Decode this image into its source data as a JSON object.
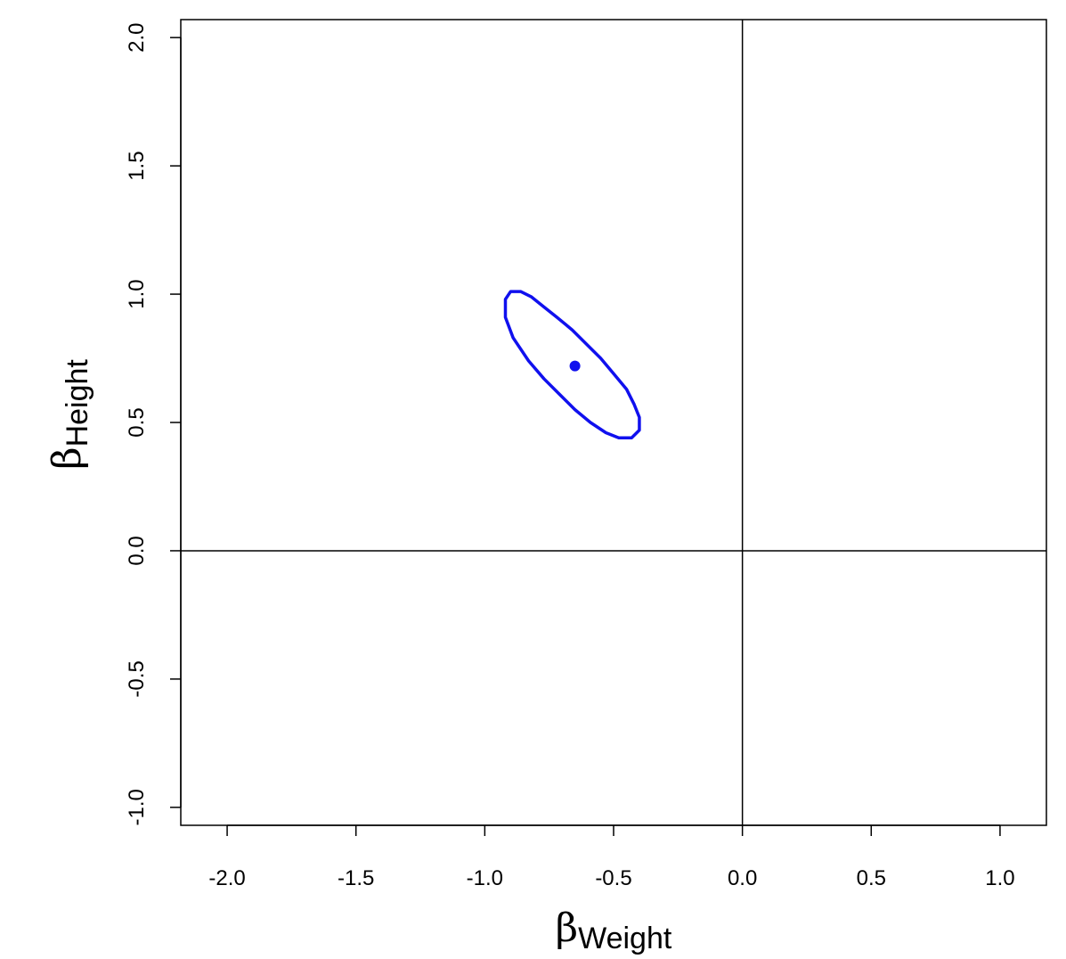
{
  "chart_data": {
    "type": "scatter",
    "title": "",
    "xlabel": {
      "symbol": "β",
      "subscript": "Weight"
    },
    "ylabel": {
      "symbol": "β",
      "subscript": "Height"
    },
    "xlim": [
      -2.18,
      1.18
    ],
    "ylim": [
      -1.07,
      2.07
    ],
    "x_ticks": [
      -2.0,
      -1.5,
      -1.0,
      -0.5,
      0.0,
      0.5,
      1.0
    ],
    "x_tick_labels": [
      "-2.0",
      "-1.5",
      "-1.0",
      "-0.5",
      "0.0",
      "0.5",
      "1.0"
    ],
    "y_ticks": [
      -1.0,
      -0.5,
      0.0,
      0.5,
      1.0,
      1.5,
      2.0
    ],
    "y_tick_labels": [
      "-1.0",
      "-0.5",
      "0.0",
      "0.5",
      "1.0",
      "1.5",
      "2.0"
    ],
    "reference_lines": {
      "x": 0.0,
      "y": 0.0
    },
    "grid": false,
    "color": "#1010ee",
    "point_estimate": {
      "x": -0.65,
      "y": 0.72
    },
    "confidence_ellipse": {
      "points": [
        [
          -0.9,
          1.01
        ],
        [
          -0.86,
          1.01
        ],
        [
          -0.82,
          0.99
        ],
        [
          -0.77,
          0.95
        ],
        [
          -0.72,
          0.91
        ],
        [
          -0.66,
          0.86
        ],
        [
          -0.61,
          0.81
        ],
        [
          -0.55,
          0.75
        ],
        [
          -0.5,
          0.69
        ],
        [
          -0.45,
          0.63
        ],
        [
          -0.42,
          0.57
        ],
        [
          -0.4,
          0.52
        ],
        [
          -0.4,
          0.47
        ],
        [
          -0.43,
          0.44
        ],
        [
          -0.48,
          0.44
        ],
        [
          -0.53,
          0.46
        ],
        [
          -0.59,
          0.5
        ],
        [
          -0.65,
          0.55
        ],
        [
          -0.71,
          0.61
        ],
        [
          -0.77,
          0.67
        ],
        [
          -0.83,
          0.74
        ],
        [
          -0.89,
          0.83
        ],
        [
          -0.92,
          0.91
        ],
        [
          -0.92,
          0.98
        ]
      ]
    }
  }
}
